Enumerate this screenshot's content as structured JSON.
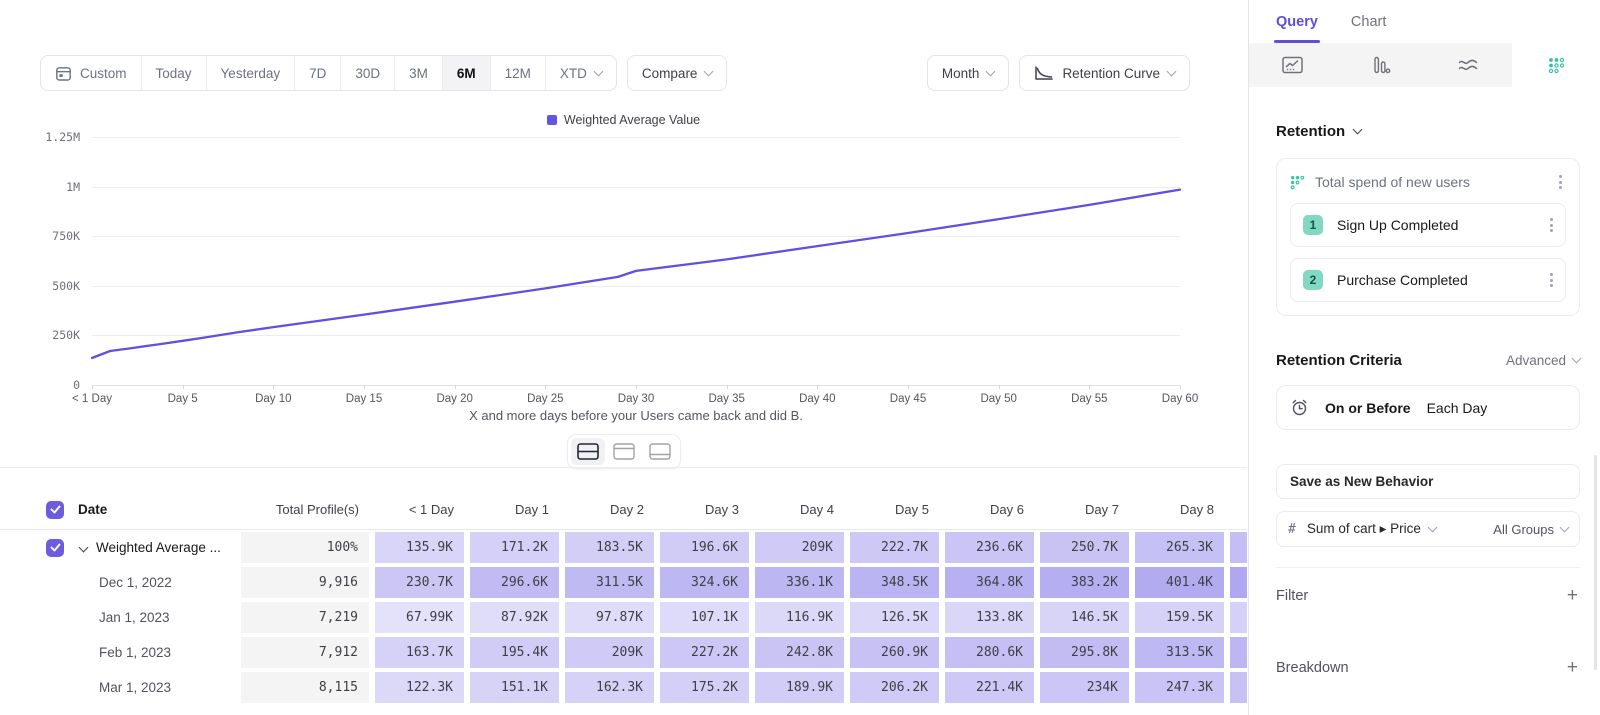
{
  "toolbar": {
    "ranges": [
      "Custom",
      "Today",
      "Yesterday",
      "7D",
      "30D",
      "3M",
      "6M",
      "12M",
      "XTD"
    ],
    "active_range": "6M",
    "compare": "Compare",
    "granularity": "Month",
    "chart_style": "Retention Curve"
  },
  "chart_data": {
    "type": "line",
    "legend": [
      {
        "label": "Weighted Average Value",
        "color": "#6155e6"
      }
    ],
    "y_ticks": [
      {
        "label": "0",
        "value": 0
      },
      {
        "label": "250K",
        "value": 250000
      },
      {
        "label": "500K",
        "value": 500000
      },
      {
        "label": "750K",
        "value": 750000
      },
      {
        "label": "1M",
        "value": 1000000
      },
      {
        "label": "1.25M",
        "value": 1250000
      }
    ],
    "x_ticks": [
      {
        "label": "< 1 Day",
        "day": 0
      },
      {
        "label": "Day 5",
        "day": 5
      },
      {
        "label": "Day 10",
        "day": 10
      },
      {
        "label": "Day 15",
        "day": 15
      },
      {
        "label": "Day 20",
        "day": 20
      },
      {
        "label": "Day 25",
        "day": 25
      },
      {
        "label": "Day 30",
        "day": 30
      },
      {
        "label": "Day 35",
        "day": 35
      },
      {
        "label": "Day 40",
        "day": 40
      },
      {
        "label": "Day 45",
        "day": 45
      },
      {
        "label": "Day 50",
        "day": 50
      },
      {
        "label": "Day 55",
        "day": 55
      },
      {
        "label": "Day 60",
        "day": 60
      }
    ],
    "xlim": [
      0,
      60
    ],
    "ylim": [
      0,
      1250000
    ],
    "series": [
      {
        "name": "Weighted Average Value",
        "color": "#5f50e2",
        "points": [
          [
            0,
            135900
          ],
          [
            1,
            171200
          ],
          [
            2,
            183500
          ],
          [
            3,
            196600
          ],
          [
            4,
            209000
          ],
          [
            5,
            222700
          ],
          [
            6,
            236600
          ],
          [
            7,
            250700
          ],
          [
            8,
            265300
          ],
          [
            10,
            292000
          ],
          [
            15,
            355000
          ],
          [
            20,
            420000
          ],
          [
            25,
            487000
          ],
          [
            29,
            545000
          ],
          [
            30,
            575000
          ],
          [
            35,
            633000
          ],
          [
            40,
            700000
          ],
          [
            45,
            766000
          ],
          [
            50,
            836000
          ],
          [
            55,
            908000
          ],
          [
            60,
            985000
          ]
        ]
      }
    ],
    "caption": "X and more days before your Users came back and did B."
  },
  "view_toggle": {
    "options": [
      "table-split",
      "table-top",
      "table-bottom"
    ],
    "selected": 0
  },
  "table": {
    "header": {
      "date": "Date",
      "total": "Total Profile(s)",
      "days": [
        "< 1 Day",
        "Day 1",
        "Day 2",
        "Day 3",
        "Day 4",
        "Day 5",
        "Day 6",
        "Day 7",
        "Day 8"
      ]
    },
    "rows": [
      {
        "label": "Weighted Average ...",
        "checked": true,
        "expandable": true,
        "total": "100%",
        "cells": [
          "135.9K",
          "171.2K",
          "183.5K",
          "196.6K",
          "209K",
          "222.7K",
          "236.6K",
          "250.7K",
          "265.3K"
        ]
      },
      {
        "label": "Dec 1, 2022",
        "checked": false,
        "expandable": false,
        "total": "9,916",
        "cells": [
          "230.7K",
          "296.6K",
          "311.5K",
          "324.6K",
          "336.1K",
          "348.5K",
          "364.8K",
          "383.2K",
          "401.4K"
        ]
      },
      {
        "label": "Jan 1, 2023",
        "checked": false,
        "expandable": false,
        "total": "7,219",
        "cells": [
          "67.99K",
          "87.92K",
          "97.87K",
          "107.1K",
          "116.9K",
          "126.5K",
          "133.8K",
          "146.5K",
          "159.5K"
        ]
      },
      {
        "label": "Feb 1, 2023",
        "checked": false,
        "expandable": false,
        "total": "7,912",
        "cells": [
          "163.7K",
          "195.4K",
          "209K",
          "227.2K",
          "242.8K",
          "260.9K",
          "280.6K",
          "295.8K",
          "313.5K"
        ]
      },
      {
        "label": "Mar 1, 2023",
        "checked": false,
        "expandable": false,
        "total": "8,115",
        "cells": [
          "122.3K",
          "151.1K",
          "162.3K",
          "175.2K",
          "189.9K",
          "206.2K",
          "221.4K",
          "234K",
          "247.3K"
        ]
      }
    ]
  },
  "panel": {
    "tabs": [
      {
        "label": "Query",
        "active": true
      },
      {
        "label": "Chart",
        "active": false
      }
    ],
    "chart_types": [
      "insights-line",
      "bar",
      "flows",
      "retention-grid"
    ],
    "selected_chart_type": "retention-grid",
    "report_type": "Retention",
    "behavior": {
      "title": "Total spend of new users",
      "steps": [
        {
          "num": "1",
          "label": "Sign Up Completed"
        },
        {
          "num": "2",
          "label": "Purchase Completed"
        }
      ]
    },
    "criteria": {
      "heading": "Retention Criteria",
      "mode": "Advanced",
      "condition": "On or Before",
      "window": "Each Day"
    },
    "save_behavior": "Save as New Behavior",
    "measure": {
      "prefix": "#",
      "property": "Sum of cart ▸ Price",
      "scope": "All Groups"
    },
    "sections": [
      {
        "label": "Filter",
        "action": "+"
      },
      {
        "label": "Breakdown",
        "action": "+"
      }
    ]
  },
  "colors": {
    "accent": "#6155e6",
    "heatmap_base": "#6a5be2",
    "teal": "#35c1a9"
  }
}
